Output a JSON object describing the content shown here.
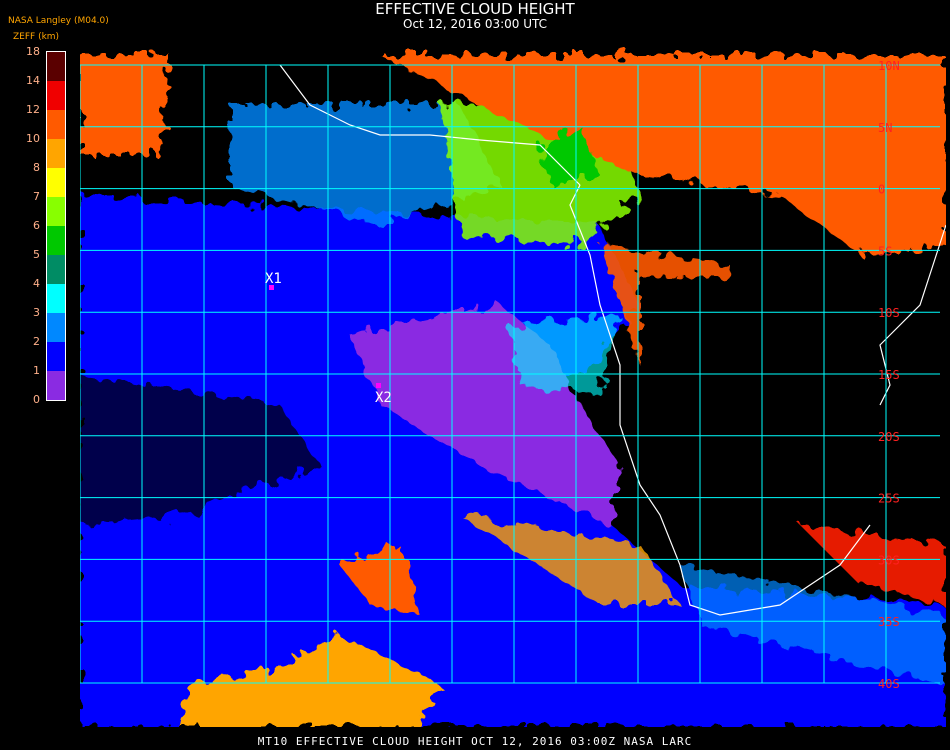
{
  "header": {
    "title": "EFFECTIVE CLOUD HEIGHT",
    "subtitle": "Oct 12, 2016 03:00 UTC"
  },
  "legend": {
    "source": "NASA Langley (M04.0)",
    "unit": "ZEFF (km)",
    "ticks": [
      "18",
      "14",
      "12",
      "10",
      "8",
      "7",
      "6",
      "5",
      "4",
      "3",
      "2",
      "1",
      "0"
    ],
    "colors": [
      "#5a0000",
      "#f00000",
      "#ff5a00",
      "#ffa500",
      "#ffff00",
      "#88ff00",
      "#00c800",
      "#008c64",
      "#00ffff",
      "#0088ff",
      "#0000ff",
      "#8a2be2"
    ]
  },
  "map": {
    "lat_labels": [
      "10N",
      "5N",
      "0",
      "5S",
      "10S",
      "15S",
      "20S",
      "25S",
      "30S",
      "35S",
      "40S"
    ],
    "markers": [
      {
        "label": "X1",
        "color": "#ff00ff"
      },
      {
        "label": "X2",
        "color": "#ff00ff"
      }
    ],
    "grid_color": "#00ffff",
    "coast_color": "#ffffff"
  },
  "footer": {
    "text": "MT10  EFFECTIVE CLOUD HEIGHT  OCT 12, 2016 03:00Z  NASA LARC"
  }
}
